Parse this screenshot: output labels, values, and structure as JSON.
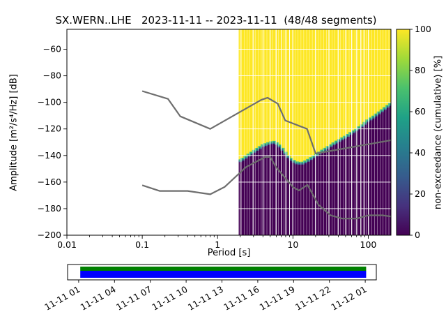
{
  "chart_data": {
    "type": "heatmap",
    "title": "SX.WERN..LHE   2023-11-11 -- 2023-11-11  (48/48 segments)",
    "xlabel": "Period [s]",
    "ylabel": "Amplitude [m²/s⁴/Hz] [dB]",
    "colorbar_label": "non-exceedance (cumulative) [%]",
    "xlim": [
      0.01,
      200
    ],
    "ylim": [
      -200,
      -45
    ],
    "x_major_ticks": [
      0.01,
      0.1,
      1,
      10,
      100
    ],
    "x_major_tick_labels": [
      "0.01",
      "0.1",
      "1",
      "10",
      "100"
    ],
    "y_ticks": [
      -60,
      -80,
      -100,
      -120,
      -140,
      -160,
      -180,
      -200
    ],
    "colorbar_ticks": [
      0,
      20,
      40,
      60,
      80,
      100
    ],
    "viridis_stops": [
      "#440154",
      "#46327e",
      "#365c8d",
      "#277f8e",
      "#1fa187",
      "#4ac16d",
      "#a0da39",
      "#fde725"
    ],
    "grid": true,
    "hist": {
      "period_start": 1.9,
      "period_end": 200,
      "bins_per_octave": 8,
      "top_color": "#fde725",
      "bottom_color": "#440154",
      "band_colors": [
        "#35b779",
        "#31688e"
      ],
      "boundary": [
        [
          1.9,
          -144
        ],
        [
          2.2,
          -142
        ],
        [
          2.6,
          -139
        ],
        [
          3.2,
          -135.5
        ],
        [
          4,
          -132
        ],
        [
          5,
          -130
        ],
        [
          5.6,
          -129.5
        ],
        [
          6.3,
          -131
        ],
        [
          7,
          -133.5
        ],
        [
          8,
          -138
        ],
        [
          9,
          -141.5
        ],
        [
          10,
          -143.5
        ],
        [
          11,
          -145
        ],
        [
          13,
          -145.5
        ],
        [
          15,
          -144
        ],
        [
          17,
          -142
        ],
        [
          20,
          -139.5
        ],
        [
          24,
          -136.5
        ],
        [
          28,
          -134
        ],
        [
          34,
          -131
        ],
        [
          40,
          -128.5
        ],
        [
          48,
          -126
        ],
        [
          58,
          -123
        ],
        [
          70,
          -120
        ],
        [
          85,
          -116.5
        ],
        [
          100,
          -113
        ],
        [
          120,
          -110
        ],
        [
          145,
          -106.5
        ],
        [
          170,
          -103.5
        ],
        [
          200,
          -100.5
        ]
      ]
    },
    "noise_models": {
      "color": "#6e6e6e",
      "nhnm": [
        [
          0.1,
          -91.5
        ],
        [
          0.22,
          -97.4
        ],
        [
          0.32,
          -110.5
        ],
        [
          0.8,
          -120.0
        ],
        [
          3.8,
          -98.1
        ],
        [
          4.6,
          -96.5
        ],
        [
          6.3,
          -101.0
        ],
        [
          7.9,
          -113.6
        ],
        [
          15.4,
          -120.0
        ],
        [
          20,
          -138.5
        ],
        [
          200,
          -128.5
        ]
      ],
      "nlnm": [
        [
          0.1,
          -162.4
        ],
        [
          0.17,
          -166.7
        ],
        [
          0.4,
          -166.7
        ],
        [
          0.8,
          -169.2
        ],
        [
          1.24,
          -163.7
        ],
        [
          2.4,
          -148.6
        ],
        [
          4.3,
          -141.1
        ],
        [
          5,
          -141.1
        ],
        [
          6,
          -149.0
        ],
        [
          10,
          -163.7
        ],
        [
          12,
          -166.3
        ],
        [
          15.6,
          -162.1
        ],
        [
          21.9,
          -177.2
        ],
        [
          31.6,
          -185.0
        ],
        [
          45,
          -187.5
        ],
        [
          70,
          -187.5
        ],
        [
          101,
          -185.0
        ],
        [
          154,
          -185.0
        ],
        [
          200,
          -185.9
        ]
      ]
    },
    "coverage": {
      "tick_labels": [
        "11-11 01",
        "11-11 04",
        "11-11 07",
        "11-11 10",
        "11-11 13",
        "11-11 16",
        "11-11 19",
        "11-11 22",
        "11-12 01"
      ],
      "first_tick_frac": 0.036,
      "last_tick_frac": 0.964,
      "bar_start_frac": 0.041,
      "bar_end_frac": 0.967,
      "segment_color": "#008000",
      "data_color": "#0000ff"
    }
  }
}
